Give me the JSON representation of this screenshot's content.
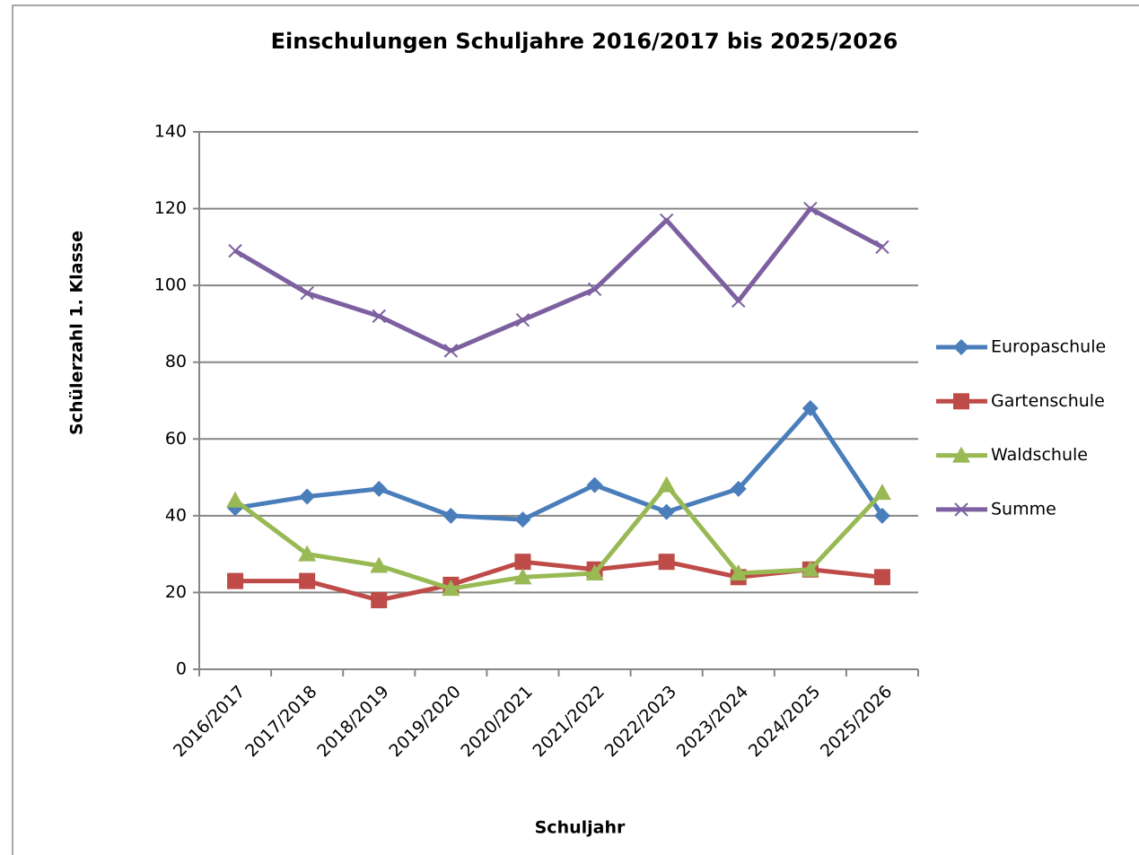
{
  "chart_data": {
    "type": "line",
    "title": "Einschulungen  Schuljahre 2016/2017 bis 2025/2026",
    "x_label": "Schuljahr",
    "y_label": "Schülerzahl 1. Klasse",
    "categories": [
      "2016/2017",
      "2017/2018",
      "2018/2019",
      "2019/2020",
      "2020/2021",
      "2021/2022",
      "2022/2023",
      "2023/2024",
      "2024/2025",
      "2025/2026"
    ],
    "series": [
      {
        "name": "Europaschule",
        "color": "#4a7ebb",
        "marker": "diamond",
        "values": [
          42,
          45,
          47,
          40,
          39,
          48,
          41,
          47,
          68,
          40
        ]
      },
      {
        "name": "Gartenschule",
        "color": "#be4b48",
        "marker": "square",
        "values": [
          23,
          23,
          18,
          22,
          28,
          26,
          28,
          24,
          26,
          24
        ]
      },
      {
        "name": "Waldschule",
        "color": "#98b954",
        "marker": "triangle",
        "values": [
          44,
          30,
          27,
          21,
          24,
          25,
          48,
          25,
          26,
          46
        ]
      },
      {
        "name": "Summe",
        "color": "#7d60a0",
        "marker": "x",
        "values": [
          109,
          98,
          92,
          83,
          91,
          99,
          117,
          96,
          120,
          110
        ]
      }
    ],
    "ylim": [
      0,
      140
    ],
    "yticks": [
      0,
      20,
      40,
      60,
      80,
      100,
      120,
      140
    ],
    "grid": true,
    "legend": "right"
  }
}
